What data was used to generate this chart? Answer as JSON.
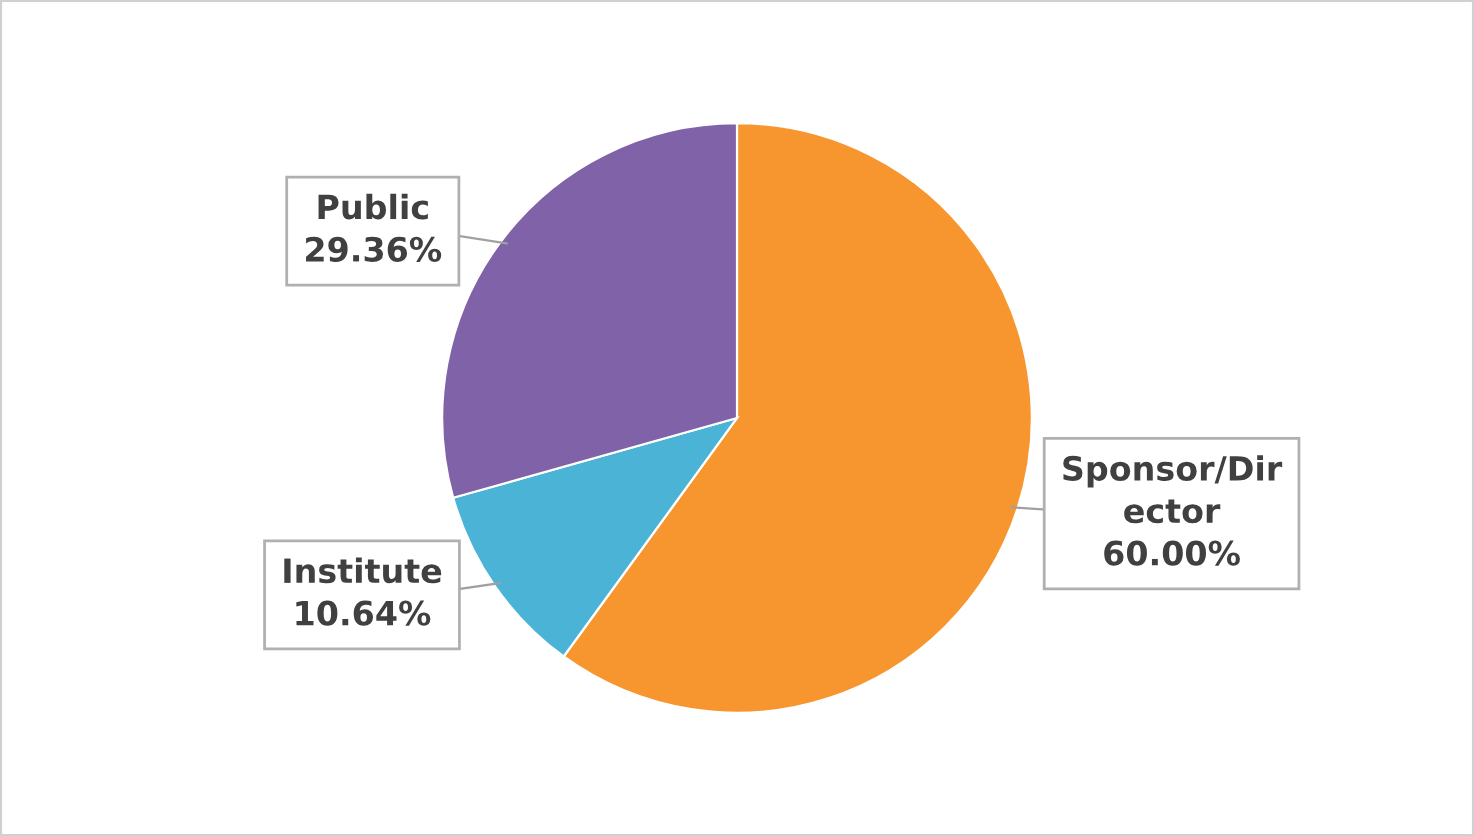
{
  "chart_data": {
    "type": "pie",
    "categories": [
      "Sponsor/Dir\nector",
      "Institute",
      "Public"
    ],
    "values": [
      60.0,
      10.64,
      29.36
    ],
    "value_labels": [
      "60.00%",
      "10.64%",
      "29.36%"
    ],
    "colors": [
      "#f7962f",
      "#4bb4d6",
      "#8062a8"
    ],
    "legend": false
  }
}
